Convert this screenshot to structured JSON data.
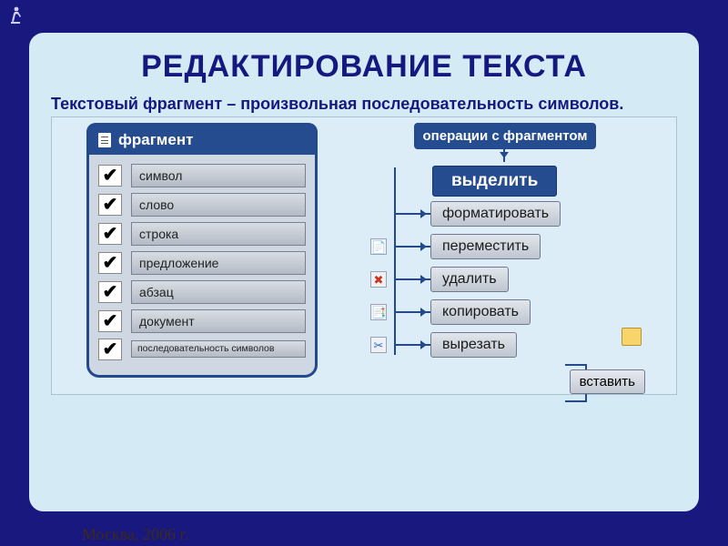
{
  "colors": {
    "page_bg": "#18187f",
    "slide_bg": "#d4ebf6",
    "heading": "#15197f",
    "panel_header_bg": "#244c8f",
    "panel_border": "#234a8e",
    "button_text": "#1a1a1a"
  },
  "title": "РЕДАКТИРОВАНИЕ ТЕКСТА",
  "subtitle": "Текстовый фрагмент – произвольная последовательность символов.",
  "footer": "Москва, 2006 г.",
  "fragment_panel": {
    "header": "фрагмент",
    "items": [
      {
        "label": "символ",
        "checked": true
      },
      {
        "label": "слово",
        "checked": true
      },
      {
        "label": "строка",
        "checked": true
      },
      {
        "label": "предложение",
        "checked": true
      },
      {
        "label": "абзац",
        "checked": true
      },
      {
        "label": "документ",
        "checked": true
      },
      {
        "label": "последовательность символов",
        "checked": true,
        "small": true
      }
    ]
  },
  "operations": {
    "header": "операции с фрагментом",
    "primary": "выделить",
    "steps": [
      {
        "label": "форматировать",
        "icon": ""
      },
      {
        "label": "переместить",
        "icon": "📄"
      },
      {
        "label": "удалить",
        "icon": "✖",
        "icon_color": "#d03020"
      },
      {
        "label": "копировать",
        "icon": "📑"
      },
      {
        "label": "вырезать",
        "icon": "✂",
        "icon_color": "#3060c0"
      }
    ],
    "insert": "вставить"
  }
}
